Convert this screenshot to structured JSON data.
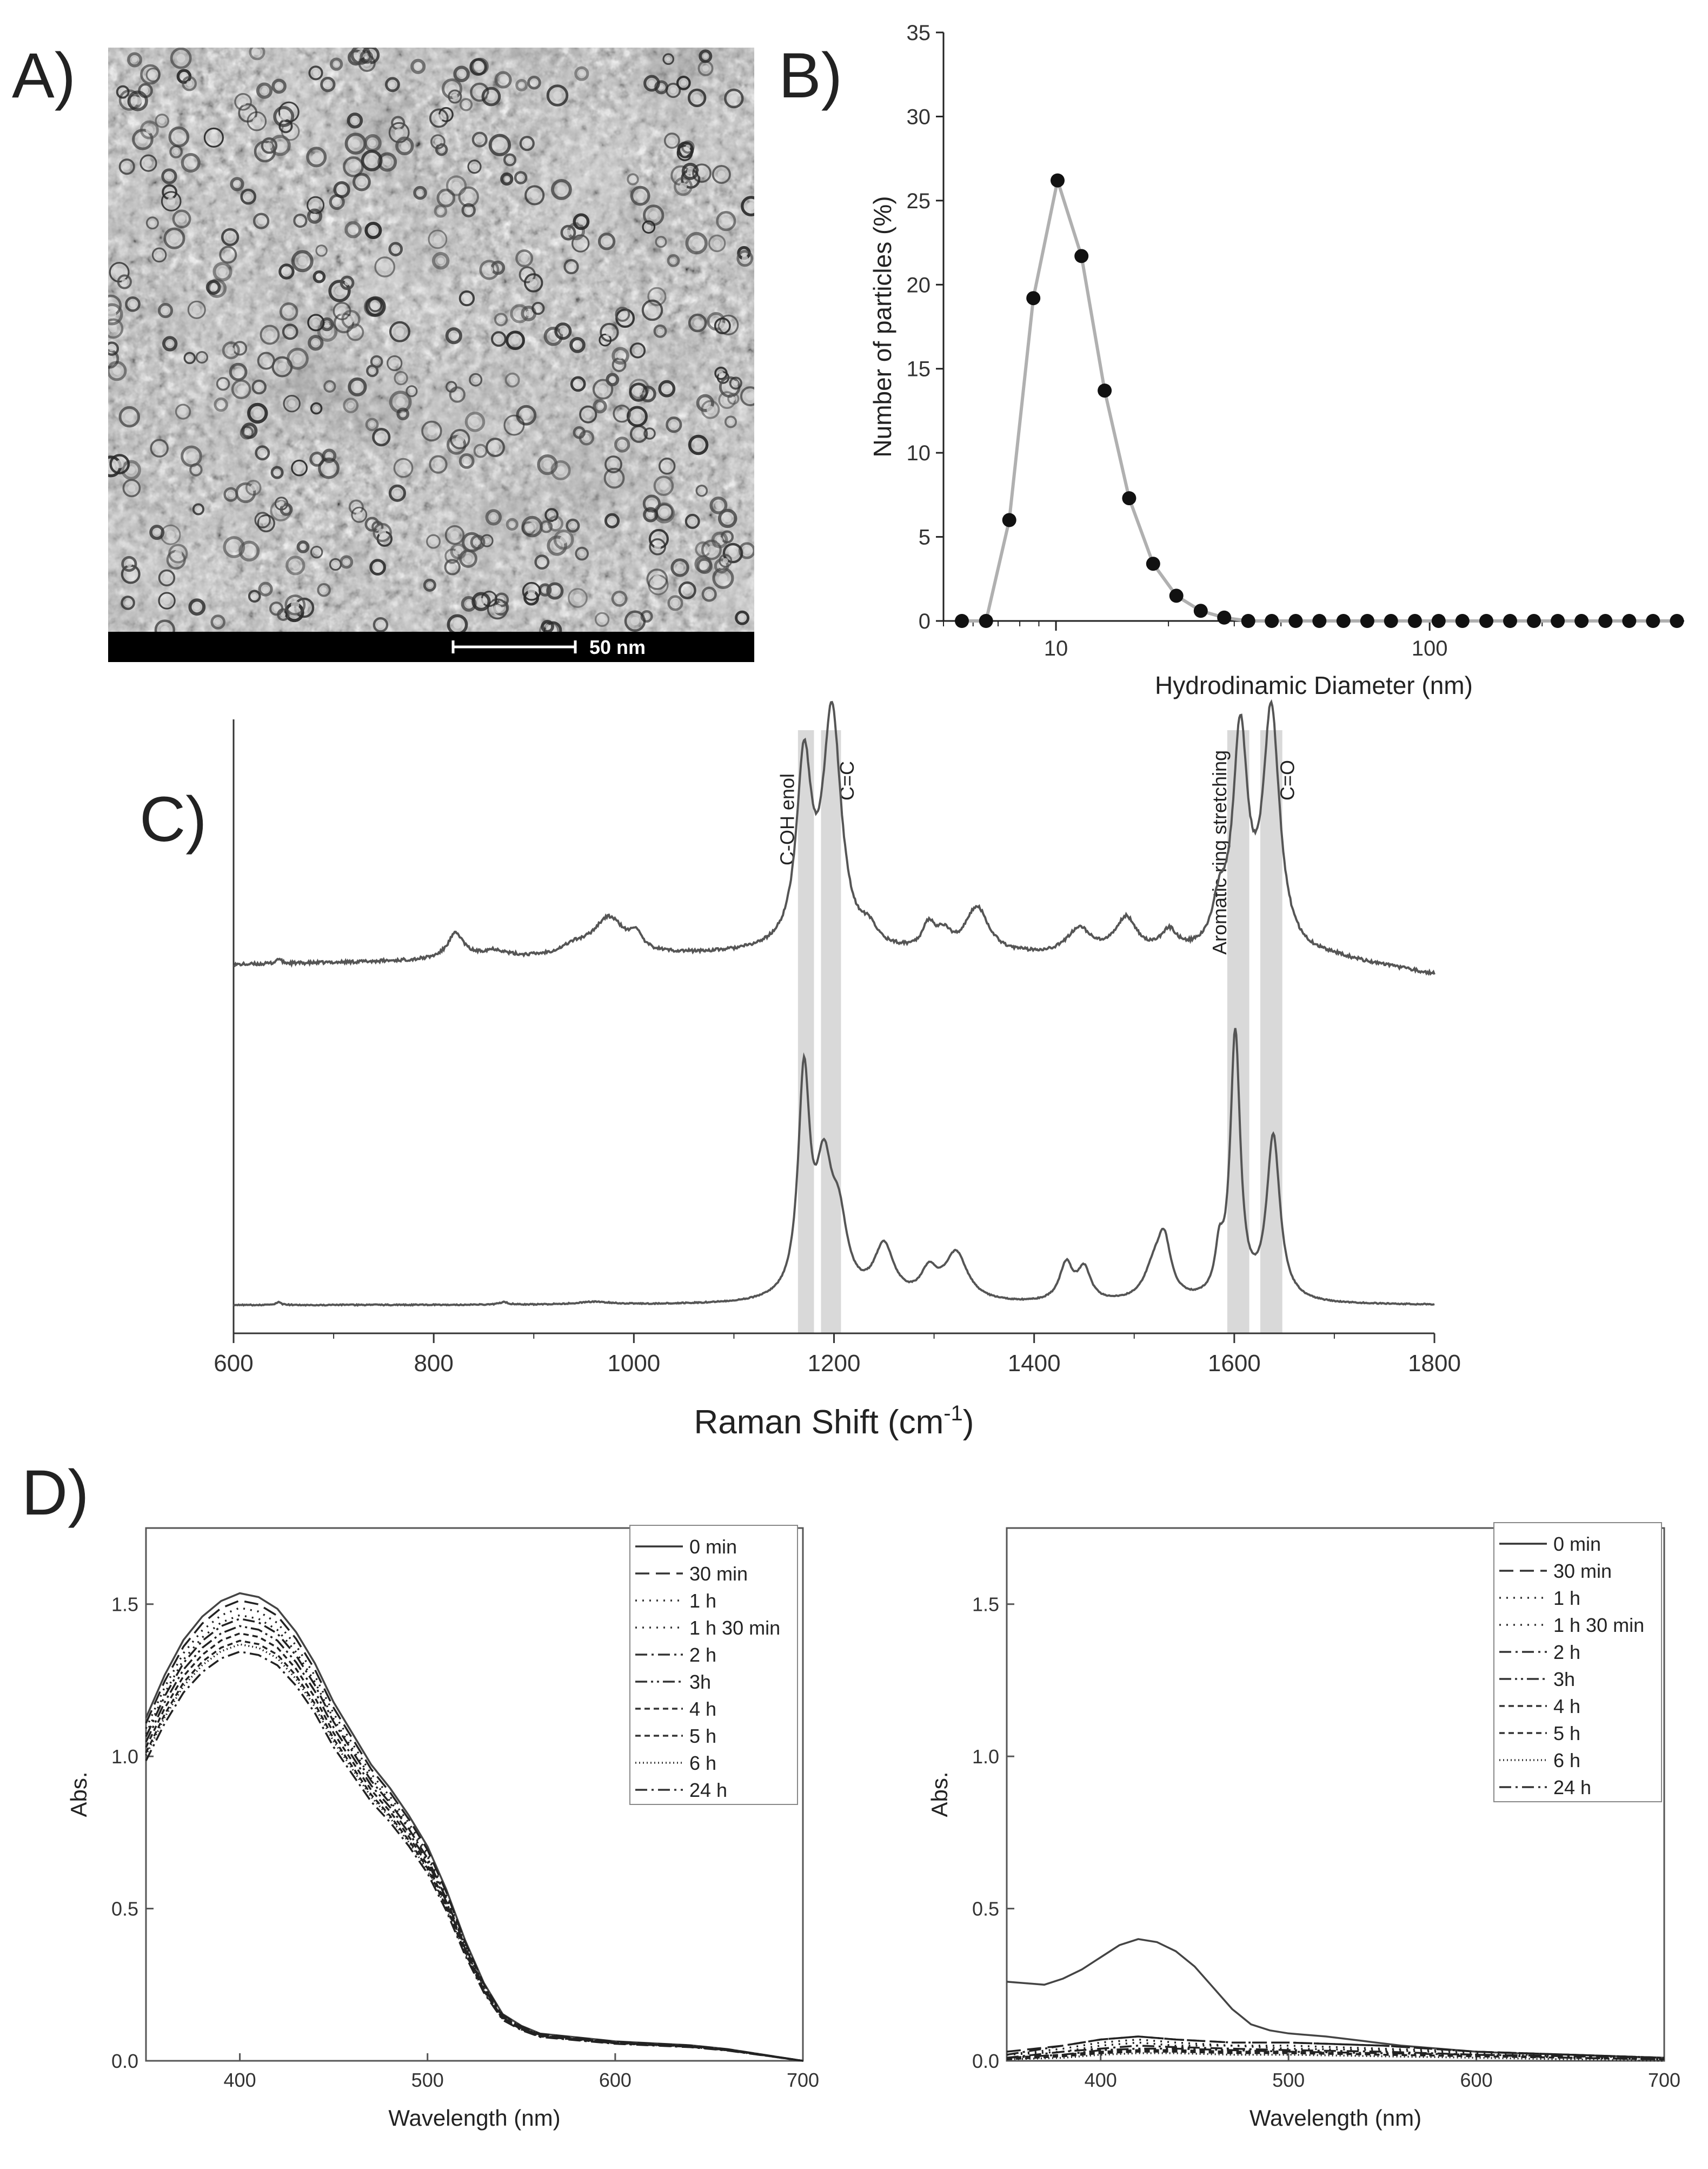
{
  "panels": {
    "A": {
      "label": "A)",
      "scale_bar_text": "50 nm"
    },
    "B": {
      "label": "B)"
    },
    "C": {
      "label": "C)"
    },
    "D": {
      "label": "D)"
    }
  },
  "chart_data": [
    {
      "id": "B",
      "type": "scatter",
      "xlabel": "Hydrodinamic Diameter (nm)",
      "ylabel": "Number of particles (%)",
      "xscale": "log",
      "xlim": [
        5,
        480
      ],
      "ylim": [
        0,
        35
      ],
      "xticks": [
        10,
        100
      ],
      "yticks": [
        0,
        5,
        10,
        15,
        20,
        25,
        30,
        35
      ],
      "grid": false,
      "colors": {
        "points": "#111111",
        "fit": "#b0b0b0"
      },
      "series": [
        {
          "x": [
            5.6,
            6.5,
            7.5,
            8.7,
            10.1,
            11.7,
            13.5,
            15.7,
            18.2,
            21.0,
            24.4,
            28.2,
            32.7,
            37.8,
            43.8,
            50.7,
            58.8,
            68.1,
            78.8,
            91.3,
            105.7,
            122.4,
            141.8,
            164.2,
            190.1,
            220.2,
            255.0,
            295.3,
            342.0,
            396.1,
            458.7
          ],
          "y": [
            0,
            0,
            6.0,
            19.2,
            26.2,
            21.7,
            13.7,
            7.3,
            3.4,
            1.5,
            0.6,
            0.2,
            0,
            0,
            0,
            0,
            0,
            0,
            0,
            0,
            0,
            0,
            0,
            0,
            0,
            0,
            0,
            0,
            0,
            0,
            0
          ]
        }
      ]
    },
    {
      "id": "C",
      "type": "line",
      "xlabel": "Raman Shift (cm",
      "xlabel_sup": "-1",
      "xlabel_end": ")",
      "xlim": [
        600,
        1800
      ],
      "xticks": [
        600,
        800,
        1000,
        1200,
        1400,
        1600,
        1800
      ],
      "yticks": [],
      "grid": false,
      "colors": {
        "line": "#555555",
        "band": "#d9d9d9"
      },
      "bands": [
        {
          "center": 1172,
          "width": 16,
          "label": "C-OH enol"
        },
        {
          "center": 1197,
          "width": 20,
          "label": "C=C"
        },
        {
          "center": 1604,
          "width": 22,
          "label": "Aromatic ring stretching"
        },
        {
          "center": 1637,
          "width": 22,
          "label": "C=O"
        }
      ],
      "series": [
        {
          "baseline": [
            [
              600,
              0.3
            ],
            [
              1130,
              0.34
            ],
            [
              1700,
              0.32
            ],
            [
              1800,
              0.26
            ]
          ],
          "peaks": [
            [
              645,
              0.02,
              3
            ],
            [
              822,
              0.1,
              10
            ],
            [
              860,
              0.03,
              15
            ],
            [
              940,
              0.03,
              15
            ],
            [
              975,
              0.15,
              20
            ],
            [
              1002,
              0.06,
              6
            ],
            [
              1170,
              0.72,
              9
            ],
            [
              1198,
              0.92,
              11
            ],
            [
              1235,
              0.06,
              10
            ],
            [
              1295,
              0.1,
              8
            ],
            [
              1310,
              0.06,
              8
            ],
            [
              1343,
              0.18,
              14
            ],
            [
              1445,
              0.1,
              14
            ],
            [
              1492,
              0.14,
              13
            ],
            [
              1535,
              0.08,
              10
            ],
            [
              1585,
              0.15,
              8
            ],
            [
              1606,
              0.85,
              9
            ],
            [
              1637,
              0.94,
              10
            ]
          ]
        },
        {
          "baseline": [
            [
              600,
              0.0
            ],
            [
              1800,
              0.0
            ]
          ],
          "peaks": [
            [
              645,
              0.01,
              3
            ],
            [
              870,
              0.01,
              5
            ],
            [
              960,
              0.01,
              20
            ],
            [
              1170,
              0.82,
              7
            ],
            [
              1190,
              0.45,
              10
            ],
            [
              1205,
              0.25,
              10
            ],
            [
              1250,
              0.2,
              12
            ],
            [
              1295,
              0.1,
              10
            ],
            [
              1322,
              0.18,
              14
            ],
            [
              1432,
              0.14,
              8
            ],
            [
              1450,
              0.12,
              8
            ],
            [
              1520,
              0.12,
              12
            ],
            [
              1530,
              0.2,
              8
            ],
            [
              1585,
              0.15,
              5
            ],
            [
              1601,
              1.0,
              6
            ],
            [
              1639,
              0.62,
              8
            ]
          ]
        }
      ]
    },
    {
      "id": "D-left",
      "type": "line",
      "xlabel": "Wavelength (nm)",
      "ylabel": "Abs.",
      "xlim": [
        350,
        700
      ],
      "ylim": [
        0,
        1.75
      ],
      "xticks": [
        400,
        500,
        600,
        700
      ],
      "yticks": [
        0.0,
        0.5,
        1.0,
        1.5
      ],
      "legend_position": "top-right",
      "grid": false,
      "x": [
        350,
        360,
        370,
        380,
        390,
        400,
        410,
        420,
        430,
        440,
        450,
        460,
        470,
        480,
        490,
        500,
        510,
        520,
        530,
        540,
        550,
        560,
        580,
        600,
        620,
        640,
        660,
        680,
        700
      ],
      "shape": [
        0.88,
        0.99,
        1.08,
        1.14,
        1.18,
        1.2,
        1.19,
        1.16,
        1.1,
        1.02,
        0.92,
        0.84,
        0.76,
        0.7,
        0.63,
        0.55,
        0.44,
        0.31,
        0.2,
        0.12,
        0.09,
        0.07,
        0.06,
        0.05,
        0.045,
        0.04,
        0.03,
        0.015,
        0.0
      ],
      "series": [
        {
          "name": "0 min",
          "scale": 1.28,
          "dash": "solid"
        },
        {
          "name": "30 min",
          "scale": 1.26,
          "dash": "longdash"
        },
        {
          "name": "1 h",
          "scale": 1.24,
          "dash": "dot"
        },
        {
          "name": "1 h 30 min",
          "scale": 1.22,
          "dash": "dot"
        },
        {
          "name": "2 h",
          "scale": 1.21,
          "dash": "dashdot"
        },
        {
          "name": "3h",
          "scale": 1.19,
          "dash": "dashdotdot"
        },
        {
          "name": "4 h",
          "scale": 1.17,
          "dash": "shortdash"
        },
        {
          "name": "5 h",
          "scale": 1.15,
          "dash": "shortdash"
        },
        {
          "name": "6 h",
          "scale": 1.14,
          "dash": "finedot"
        },
        {
          "name": "24 h",
          "scale": 1.12,
          "dash": "dashdot"
        }
      ]
    },
    {
      "id": "D-right",
      "type": "line",
      "xlabel": "Wavelength (nm)",
      "ylabel": "Abs.",
      "xlim": [
        350,
        700
      ],
      "ylim": [
        0,
        1.75
      ],
      "xticks": [
        400,
        500,
        600,
        700
      ],
      "yticks": [
        0.0,
        0.5,
        1.0,
        1.5
      ],
      "legend_position": "top-right",
      "grid": false,
      "series": [
        {
          "name": "0 min",
          "dash": "solid",
          "x": [
            350,
            370,
            380,
            390,
            400,
            410,
            420,
            430,
            440,
            450,
            460,
            470,
            480,
            490,
            500,
            520,
            540,
            560,
            580,
            600,
            620,
            650,
            700
          ],
          "y": [
            0.26,
            0.25,
            0.27,
            0.3,
            0.34,
            0.38,
            0.4,
            0.39,
            0.36,
            0.31,
            0.24,
            0.17,
            0.12,
            0.1,
            0.09,
            0.08,
            0.065,
            0.05,
            0.04,
            0.03,
            0.025,
            0.02,
            0.01
          ]
        },
        {
          "name": "30 min",
          "dash": "longdash",
          "x": [
            350,
            380,
            400,
            420,
            440,
            470,
            500,
            550,
            600,
            650,
            700
          ],
          "y": [
            0.03,
            0.05,
            0.07,
            0.08,
            0.07,
            0.06,
            0.06,
            0.05,
            0.03,
            0.02,
            0.01
          ]
        },
        {
          "name": "1 h",
          "dash": "dot",
          "x": [
            350,
            380,
            400,
            420,
            440,
            470,
            500,
            550,
            600,
            650,
            700
          ],
          "y": [
            0.02,
            0.04,
            0.06,
            0.07,
            0.06,
            0.05,
            0.05,
            0.04,
            0.03,
            0.02,
            0.01
          ]
        },
        {
          "name": "1 h 30 min",
          "dash": "dot",
          "x": [
            350,
            380,
            400,
            420,
            440,
            470,
            500,
            550,
            600,
            650,
            700
          ],
          "y": [
            0.02,
            0.03,
            0.05,
            0.06,
            0.05,
            0.05,
            0.04,
            0.035,
            0.025,
            0.015,
            0.01
          ]
        },
        {
          "name": "2 h",
          "dash": "dashdot",
          "x": [
            350,
            380,
            400,
            420,
            440,
            470,
            500,
            550,
            600,
            650,
            700
          ],
          "y": [
            0.01,
            0.03,
            0.04,
            0.05,
            0.045,
            0.04,
            0.035,
            0.03,
            0.02,
            0.015,
            0.01
          ]
        },
        {
          "name": "3h",
          "dash": "dashdotdot",
          "x": [
            350,
            380,
            400,
            420,
            440,
            470,
            500,
            550,
            600,
            650,
            700
          ],
          "y": [
            0.01,
            0.02,
            0.035,
            0.04,
            0.04,
            0.035,
            0.03,
            0.025,
            0.02,
            0.01,
            0.005
          ]
        },
        {
          "name": "4 h",
          "dash": "shortdash",
          "x": [
            350,
            380,
            400,
            420,
            440,
            470,
            500,
            550,
            600,
            650,
            700
          ],
          "y": [
            0.01,
            0.02,
            0.03,
            0.035,
            0.035,
            0.03,
            0.03,
            0.02,
            0.015,
            0.01,
            0.005
          ]
        },
        {
          "name": "5 h",
          "dash": "shortdash",
          "x": [
            350,
            380,
            400,
            420,
            440,
            470,
            500,
            550,
            600,
            650,
            700
          ],
          "y": [
            0.005,
            0.015,
            0.025,
            0.03,
            0.03,
            0.025,
            0.025,
            0.02,
            0.015,
            0.01,
            0.005
          ]
        },
        {
          "name": "6 h",
          "dash": "finedot",
          "x": [
            350,
            380,
            400,
            420,
            440,
            470,
            500,
            550,
            600,
            650,
            700
          ],
          "y": [
            0.005,
            0.01,
            0.02,
            0.025,
            0.025,
            0.02,
            0.02,
            0.015,
            0.01,
            0.005,
            0.0
          ]
        },
        {
          "name": "24 h",
          "dash": "dashdot",
          "x": [
            350,
            380,
            400,
            420,
            440,
            470,
            500,
            550,
            600,
            650,
            700
          ],
          "y": [
            0.02,
            0.05,
            0.07,
            0.08,
            0.07,
            0.06,
            0.06,
            0.05,
            0.03,
            0.02,
            0.01
          ]
        }
      ]
    }
  ]
}
